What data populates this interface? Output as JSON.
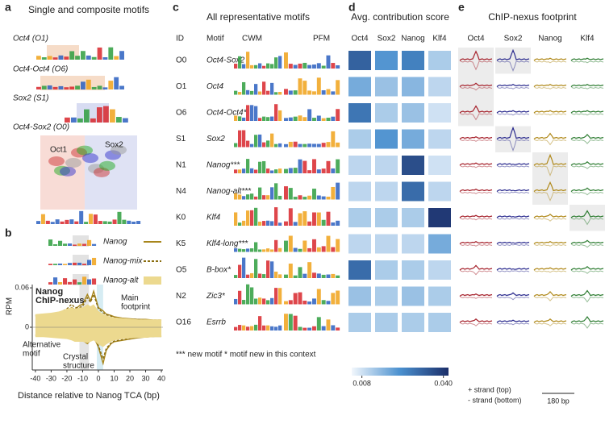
{
  "panel_a": {
    "label": "a",
    "title": "Single and composite motifs",
    "motifs": [
      "Oct4 (O1)",
      "Oct4-Oct4 (O6)",
      "Sox2 (S1)",
      "Oct4-Sox2 (O0)"
    ],
    "structure_labels": [
      "Oct1",
      "Sox2"
    ]
  },
  "panel_b": {
    "label": "b",
    "chart_data": {
      "type": "line",
      "x": [
        -40,
        -35,
        -30,
        -25,
        -20,
        -17,
        -15,
        -12,
        -10,
        -7,
        -5,
        -3,
        0,
        3,
        5,
        8,
        10,
        15,
        20,
        25,
        30,
        35,
        40
      ],
      "series": [
        {
          "name": "Nanog",
          "color": "#a8861c",
          "style": "solid",
          "values": [
            0.018,
            0.019,
            0.02,
            0.022,
            0.025,
            0.03,
            0.027,
            0.033,
            0.035,
            0.05,
            0.04,
            0.055,
            0.03,
            0.025,
            0.02,
            0.018,
            0.016,
            0.014,
            0.013,
            0.012,
            0.012,
            0.011,
            0.011
          ],
          "bottom_values": [
            -0.012,
            -0.012,
            -0.013,
            -0.013,
            -0.014,
            -0.015,
            -0.016,
            -0.017,
            -0.02,
            -0.025,
            -0.02,
            -0.015,
            -0.03,
            -0.055,
            -0.035,
            -0.025,
            -0.022,
            -0.02,
            -0.018,
            -0.016,
            -0.015,
            -0.014,
            -0.014
          ]
        },
        {
          "name": "Nanog-mix",
          "color": "#8a6d10",
          "style": "dashed",
          "values": [
            0.017,
            0.018,
            0.02,
            0.022,
            0.028,
            0.035,
            0.03,
            0.03,
            0.032,
            0.045,
            0.038,
            0.05,
            0.028,
            0.022,
            0.019,
            0.017,
            0.015,
            0.013,
            0.012,
            0.012,
            0.011,
            0.011,
            0.011
          ],
          "bottom_values": [
            -0.012,
            -0.012,
            -0.012,
            -0.013,
            -0.014,
            -0.016,
            -0.018,
            -0.018,
            -0.02,
            -0.022,
            -0.019,
            -0.015,
            -0.028,
            -0.048,
            -0.032,
            -0.024,
            -0.021,
            -0.019,
            -0.017,
            -0.015,
            -0.014,
            -0.014,
            -0.013
          ]
        },
        {
          "name": "Nanog-alt",
          "color": "#ecd98f",
          "style": "area",
          "values": [
            0.02,
            0.021,
            0.022,
            0.024,
            0.028,
            0.03,
            0.028,
            0.03,
            0.03,
            0.035,
            0.032,
            0.035,
            0.025,
            0.02,
            0.018,
            0.016,
            0.015,
            0.014,
            0.013,
            0.012,
            0.012,
            0.012,
            0.012
          ],
          "bottom_values": [
            -0.015,
            -0.015,
            -0.016,
            -0.017,
            -0.018,
            -0.02,
            -0.022,
            -0.022,
            -0.022,
            -0.024,
            -0.022,
            -0.02,
            -0.026,
            -0.03,
            -0.026,
            -0.022,
            -0.02,
            -0.018,
            -0.017,
            -0.016,
            -0.016,
            -0.015,
            -0.015
          ]
        }
      ],
      "ylabel": "RPM",
      "xlabel": "Distance relative to Nanog TCA (bp)",
      "xlim": [
        -42,
        41
      ],
      "ylim": [
        -0.065,
        0.065
      ],
      "xticks": [
        -40,
        -30,
        -20,
        -10,
        0,
        10,
        20,
        30,
        40
      ],
      "yticks": [
        0,
        0.06
      ],
      "annotations": [
        [
          "Nanog",
          "ChIP-nexus"
        ],
        [
          "Main",
          "footprint"
        ],
        [
          "Alternative",
          "motif"
        ],
        [
          "Crystal",
          "structure"
        ]
      ]
    }
  },
  "panel_c": {
    "label": "c",
    "title": "All representative motifs",
    "headers": [
      "ID",
      "Motif",
      "CWM",
      "PFM"
    ],
    "rows": [
      [
        "O0",
        "Oct4-Sox2"
      ],
      [
        "O1",
        "Oct4"
      ],
      [
        "O6",
        "Oct4-Oct4*"
      ],
      [
        "S1",
        "Sox2"
      ],
      [
        "N1",
        "Nanog***"
      ],
      [
        "N4",
        "Nanog-alt***"
      ],
      [
        "K0",
        "Klf4"
      ],
      [
        "K5",
        "Klf4-long***"
      ],
      [
        "O5",
        "B-box*"
      ],
      [
        "N2",
        "Zic3*"
      ],
      [
        "O16",
        "Esrrb"
      ]
    ],
    "footnote": "*** new motif  * motif new in this context"
  },
  "panel_d": {
    "label": "d",
    "chart_data": {
      "type": "heatmap",
      "title": "Avg. contribution score",
      "columns": [
        "Oct4",
        "Sox2",
        "Nanog",
        "Klf4"
      ],
      "values": [
        [
          0.032,
          0.022,
          0.026,
          0.012
        ],
        [
          0.018,
          0.014,
          0.016,
          0.01
        ],
        [
          0.028,
          0.012,
          0.014,
          0.008
        ],
        [
          0.012,
          0.022,
          0.018,
          0.01
        ],
        [
          0.01,
          0.01,
          0.036,
          0.008
        ],
        [
          0.01,
          0.01,
          0.03,
          0.01
        ],
        [
          0.012,
          0.012,
          0.012,
          0.04
        ],
        [
          0.01,
          0.01,
          0.01,
          0.018
        ],
        [
          0.03,
          0.012,
          0.012,
          0.01
        ],
        [
          0.014,
          0.012,
          0.014,
          0.012
        ],
        [
          0.012,
          0.012,
          0.012,
          0.012
        ]
      ],
      "colorscale": [
        "#f2f7fc",
        "#4a90cf",
        "#1c2f6a"
      ],
      "clim": [
        0.004,
        0.042
      ],
      "cticks": [
        0.008,
        {
          "value": 0.04,
          "label": "0.040"
        }
      ]
    }
  },
  "panel_e": {
    "label": "e",
    "title": "ChIP-nexus footprint",
    "columns": [
      "Oct4",
      "Sox2",
      "Nanog",
      "Klf4"
    ],
    "colors": [
      "#a5202a",
      "#2b2b8e",
      "#b0891a",
      "#2e7d32"
    ],
    "peaks": [
      [
        0.8,
        0.9,
        0.2,
        0.2
      ],
      [
        0.3,
        0.2,
        0.2,
        0.2
      ],
      [
        0.6,
        0.2,
        0.2,
        0.2
      ],
      [
        0.2,
        1,
        0.5,
        0.4
      ],
      [
        0.2,
        0.1,
        0.9,
        0.3
      ],
      [
        0.2,
        0.1,
        0.8,
        0.3
      ],
      [
        0.2,
        0.1,
        0.3,
        0.6
      ],
      [
        0.2,
        0.1,
        0.2,
        0.3
      ],
      [
        0.4,
        0.1,
        0.2,
        0.3
      ],
      [
        0.2,
        0.3,
        0.4,
        0.5
      ],
      [
        0.3,
        0.2,
        0.3,
        0.5
      ]
    ],
    "legend": [
      "+ strand (top)",
      "- strand (bottom)"
    ],
    "scale": "180 bp"
  }
}
